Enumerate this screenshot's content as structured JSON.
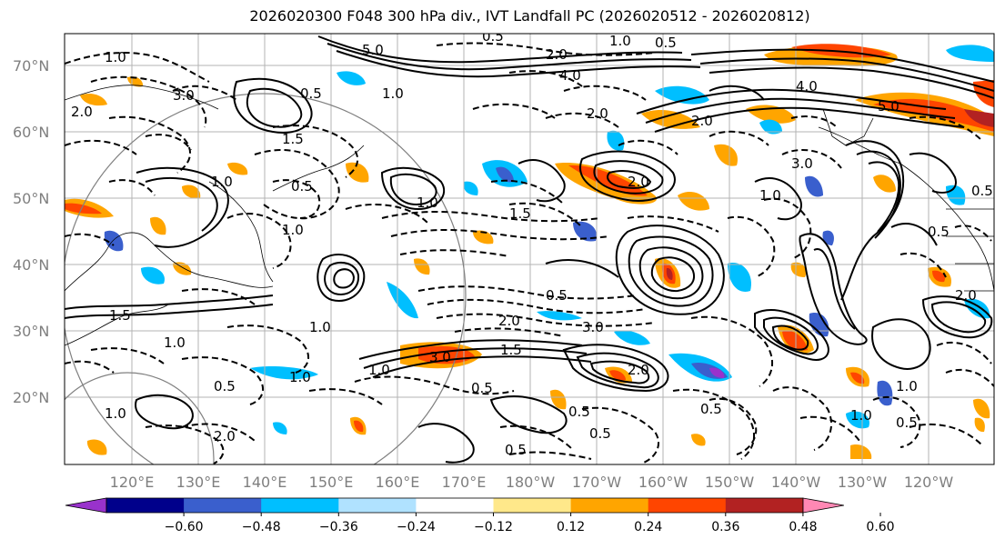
{
  "title": "2026020300 F048 300 hPa div., IVT Landfall PC (2026020512 - 2026020812)",
  "map": {
    "lat_ticks": [
      "70°N",
      "60°N",
      "50°N",
      "40°N",
      "30°N",
      "20°N"
    ],
    "lon_ticks": [
      "120°E",
      "130°E",
      "140°E",
      "150°E",
      "160°E",
      "170°E",
      "180°W",
      "170°W",
      "160°W",
      "150°W",
      "140°W",
      "130°W",
      "120°W"
    ],
    "contour_labels": [
      "5.0",
      "0.5",
      "2.0",
      "0.5",
      "4.0",
      "1.0",
      "3.0",
      "1.0",
      "2.0",
      "0.5",
      "1.5",
      "1.0",
      "0.5",
      "1.0",
      "1.5",
      "2.0",
      "3.0",
      "1.0",
      "0.5",
      "1.5",
      "1.0",
      "0.5",
      "2.0",
      "3.0",
      "1.0",
      "2.0",
      "0.5",
      "0.5",
      "0.5",
      "2.0",
      "1.5",
      "1.0",
      "1.0",
      "1.0",
      "2.0",
      "1.0",
      "0.5",
      "0.5",
      "4.0",
      "5.0",
      "3.0",
      "1.0",
      "0.5",
      "2.0",
      "1.0",
      "0.5",
      "0.5",
      "2.0",
      "1.0"
    ]
  },
  "colorbar": {
    "ticks": [
      "−0.60",
      "−0.48",
      "−0.36",
      "−0.24",
      "−0.12",
      "0.12",
      "0.24",
      "0.36",
      "0.48",
      "0.60"
    ],
    "colors": [
      "#9932cc",
      "#00008b",
      "#3a5fcd",
      "#00bfff",
      "#b0e2ff",
      "#ffffff",
      "#ffe88a",
      "#ffa500",
      "#ff4500",
      "#b22222",
      "#ff88b4"
    ]
  }
}
